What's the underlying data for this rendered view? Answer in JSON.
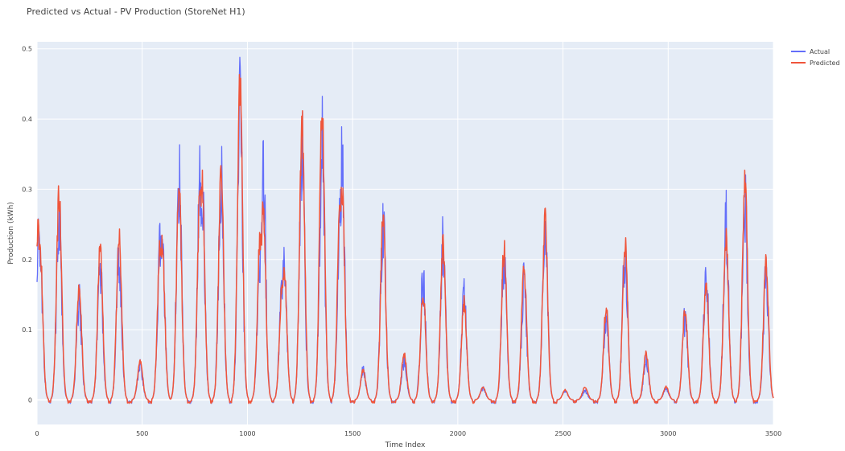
{
  "chart_data": {
    "type": "line",
    "title": "Predicted vs Actual - PV Production (StoreNet H1)",
    "xlabel": "Time Index",
    "ylabel": "Production (kWh)",
    "xlim": [
      0,
      3500
    ],
    "ylim": [
      -0.035,
      0.51
    ],
    "x_ticks": [
      0,
      500,
      1000,
      1500,
      2000,
      2500,
      3000,
      3500
    ],
    "x_tick_labels": [
      "0",
      "500",
      "1000",
      "1500",
      "2000",
      "2500",
      "3000",
      "3500"
    ],
    "y_ticks": [
      0,
      0.1,
      0.2,
      0.3,
      0.4,
      0.5
    ],
    "y_tick_labels": [
      "0",
      "0.1",
      "0.2",
      "0.3",
      "0.4",
      "0.5"
    ],
    "grid": true,
    "legend_position": "top-right",
    "background": "#e5ecf6",
    "series": [
      {
        "name": "Actual",
        "color": "#636efa",
        "peaks": [
          {
            "x": 5,
            "y": 0.27
          },
          {
            "x": 15,
            "y": 0.24
          },
          {
            "x": 105,
            "y": 0.31
          },
          {
            "x": 200,
            "y": 0.17
          },
          {
            "x": 300,
            "y": 0.23
          },
          {
            "x": 390,
            "y": 0.25
          },
          {
            "x": 490,
            "y": 0.06
          },
          {
            "x": 585,
            "y": 0.26
          },
          {
            "x": 595,
            "y": 0.265
          },
          {
            "x": 675,
            "y": 0.385
          },
          {
            "x": 775,
            "y": 0.375
          },
          {
            "x": 785,
            "y": 0.375
          },
          {
            "x": 875,
            "y": 0.385
          },
          {
            "x": 965,
            "y": 0.49
          },
          {
            "x": 1060,
            "y": 0.255
          },
          {
            "x": 1075,
            "y": 0.39
          },
          {
            "x": 1165,
            "y": 0.2
          },
          {
            "x": 1175,
            "y": 0.225
          },
          {
            "x": 1260,
            "y": 0.43
          },
          {
            "x": 1355,
            "y": 0.445
          },
          {
            "x": 1440,
            "y": 0.31
          },
          {
            "x": 1450,
            "y": 0.405
          },
          {
            "x": 1550,
            "y": 0.05
          },
          {
            "x": 1645,
            "y": 0.305
          },
          {
            "x": 1745,
            "y": 0.065
          },
          {
            "x": 1835,
            "y": 0.205
          },
          {
            "x": 1930,
            "y": 0.265
          },
          {
            "x": 2030,
            "y": 0.175
          },
          {
            "x": 2120,
            "y": 0.02
          },
          {
            "x": 2220,
            "y": 0.245
          },
          {
            "x": 2315,
            "y": 0.2
          },
          {
            "x": 2415,
            "y": 0.3
          },
          {
            "x": 2510,
            "y": 0.015
          },
          {
            "x": 2605,
            "y": 0.015
          },
          {
            "x": 2705,
            "y": 0.14
          },
          {
            "x": 2795,
            "y": 0.255
          },
          {
            "x": 2895,
            "y": 0.07
          },
          {
            "x": 2990,
            "y": 0.02
          },
          {
            "x": 3080,
            "y": 0.14
          },
          {
            "x": 3180,
            "y": 0.215
          },
          {
            "x": 3275,
            "y": 0.3
          },
          {
            "x": 3365,
            "y": 0.335
          },
          {
            "x": 3465,
            "y": 0.21
          }
        ]
      },
      {
        "name": "Predicted",
        "color": "#ef553b",
        "peaks": [
          {
            "x": 5,
            "y": 0.27
          },
          {
            "x": 15,
            "y": 0.23
          },
          {
            "x": 105,
            "y": 0.315
          },
          {
            "x": 200,
            "y": 0.175
          },
          {
            "x": 300,
            "y": 0.23
          },
          {
            "x": 390,
            "y": 0.25
          },
          {
            "x": 490,
            "y": 0.06
          },
          {
            "x": 585,
            "y": 0.24
          },
          {
            "x": 595,
            "y": 0.24
          },
          {
            "x": 675,
            "y": 0.325
          },
          {
            "x": 775,
            "y": 0.325
          },
          {
            "x": 785,
            "y": 0.34
          },
          {
            "x": 875,
            "y": 0.345
          },
          {
            "x": 965,
            "y": 0.485
          },
          {
            "x": 1060,
            "y": 0.25
          },
          {
            "x": 1075,
            "y": 0.305
          },
          {
            "x": 1165,
            "y": 0.175
          },
          {
            "x": 1175,
            "y": 0.2
          },
          {
            "x": 1260,
            "y": 0.425
          },
          {
            "x": 1355,
            "y": 0.44
          },
          {
            "x": 1440,
            "y": 0.3
          },
          {
            "x": 1450,
            "y": 0.33
          },
          {
            "x": 1550,
            "y": 0.045
          },
          {
            "x": 1645,
            "y": 0.28
          },
          {
            "x": 1745,
            "y": 0.07
          },
          {
            "x": 1835,
            "y": 0.165
          },
          {
            "x": 1930,
            "y": 0.24
          },
          {
            "x": 2030,
            "y": 0.15
          },
          {
            "x": 2120,
            "y": 0.02
          },
          {
            "x": 2220,
            "y": 0.235
          },
          {
            "x": 2315,
            "y": 0.2
          },
          {
            "x": 2415,
            "y": 0.275
          },
          {
            "x": 2510,
            "y": 0.015
          },
          {
            "x": 2605,
            "y": 0.02
          },
          {
            "x": 2705,
            "y": 0.14
          },
          {
            "x": 2795,
            "y": 0.24
          },
          {
            "x": 2895,
            "y": 0.07
          },
          {
            "x": 2990,
            "y": 0.02
          },
          {
            "x": 3080,
            "y": 0.14
          },
          {
            "x": 3180,
            "y": 0.185
          },
          {
            "x": 3275,
            "y": 0.25
          },
          {
            "x": 3365,
            "y": 0.335
          },
          {
            "x": 3465,
            "y": 0.21
          }
        ]
      }
    ]
  }
}
